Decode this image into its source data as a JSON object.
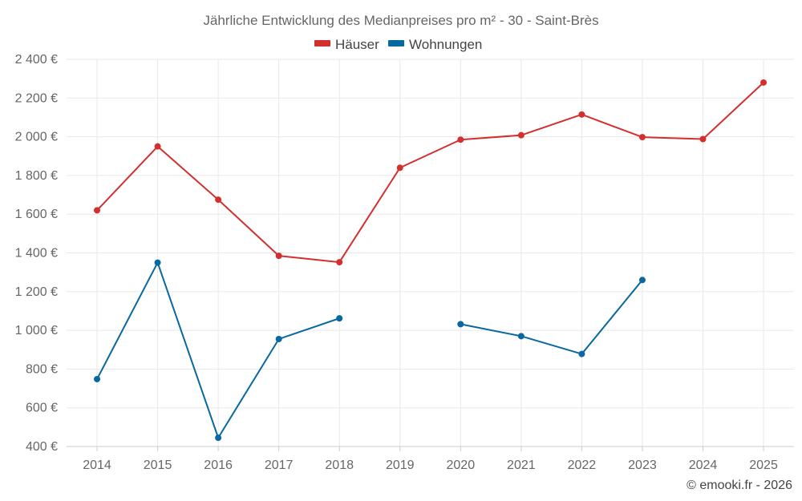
{
  "chart_data": {
    "type": "line",
    "title": "Jährliche Entwicklung des Medianpreises pro m² - 30 - Saint-Brès",
    "categories": [
      "2014",
      "2015",
      "2016",
      "2017",
      "2018",
      "2019",
      "2020",
      "2021",
      "2022",
      "2023",
      "2024",
      "2025"
    ],
    "series": [
      {
        "name": "Häuser",
        "color": "#d32f2f",
        "values": [
          1620,
          1950,
          1675,
          1385,
          1352,
          1840,
          1985,
          2008,
          2115,
          1998,
          1988,
          2280
        ]
      },
      {
        "name": "Wohnungen",
        "color": "#0868a0",
        "values": [
          748,
          1350,
          445,
          955,
          1062,
          null,
          1032,
          970,
          878,
          1260,
          null,
          null
        ]
      }
    ],
    "ylim": [
      400,
      2400
    ],
    "yticks": [
      400,
      600,
      800,
      1000,
      1200,
      1400,
      1600,
      1800,
      2000,
      2200,
      2400
    ],
    "ytick_labels": [
      "400 €",
      "600 €",
      "800 €",
      "1 000 €",
      "1 200 €",
      "1 400 €",
      "1 600 €",
      "1 800 €",
      "2 000 €",
      "2 200 €",
      "2 400 €"
    ],
    "grid": true,
    "legend_position": "top-center"
  },
  "credit": "© emooki.fr - 2026"
}
